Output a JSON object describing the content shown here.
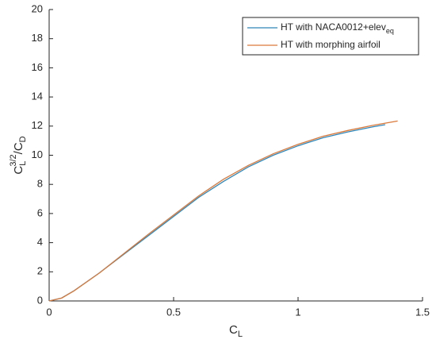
{
  "chart_data": {
    "type": "line",
    "xlabel": [
      "C",
      "L"
    ],
    "ylabel": [
      "C",
      "L",
      "3/2",
      "/C",
      "D"
    ],
    "xlim": [
      0,
      1.5
    ],
    "xticks": [
      0,
      0.5,
      1,
      1.5
    ],
    "ylim": [
      0,
      20
    ],
    "yticks": [
      0,
      2,
      4,
      6,
      8,
      10,
      12,
      14,
      16,
      18,
      20
    ],
    "legend": "upper right",
    "series": [
      {
        "name": "HT with NACA0012+elev",
        "name_sub": "eq",
        "color": "#2f85b8",
        "x": [
          0,
          0.05,
          0.1,
          0.2,
          0.3,
          0.4,
          0.5,
          0.6,
          0.7,
          0.8,
          0.9,
          1.0,
          1.1,
          1.2,
          1.3,
          1.35
        ],
        "values": [
          0,
          0.2,
          0.7,
          1.9,
          3.2,
          4.5,
          5.8,
          7.1,
          8.2,
          9.2,
          10.0,
          10.65,
          11.2,
          11.6,
          11.95,
          12.1
        ]
      },
      {
        "name": "HT with morphing airfoil",
        "color": "#d9793a",
        "x": [
          0,
          0.05,
          0.1,
          0.2,
          0.3,
          0.4,
          0.5,
          0.6,
          0.7,
          0.8,
          0.9,
          1.0,
          1.1,
          1.2,
          1.3,
          1.4
        ],
        "values": [
          0,
          0.2,
          0.7,
          1.9,
          3.25,
          4.6,
          5.9,
          7.2,
          8.35,
          9.3,
          10.1,
          10.75,
          11.3,
          11.7,
          12.05,
          12.35
        ]
      }
    ]
  }
}
